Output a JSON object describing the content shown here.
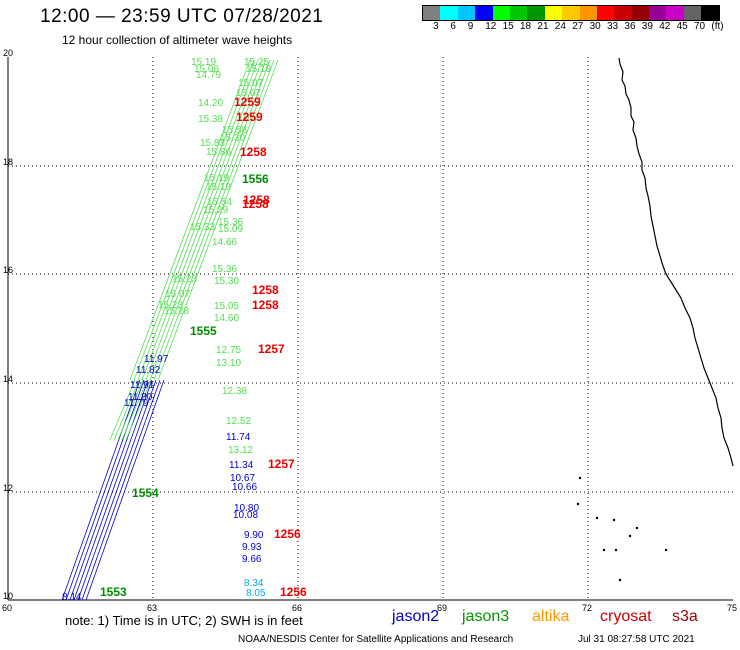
{
  "title": "12:00 — 23:59 UTC 07/28/2021",
  "subtitle": "12 hour collection of altimeter wave heights",
  "scale": {
    "colors": [
      "#7f7f7f",
      "#00ffff",
      "#00c8ff",
      "#0000ff",
      "#00ff00",
      "#00c800",
      "#009600",
      "#ffff00",
      "#ffc800",
      "#ff9600",
      "#ff0000",
      "#c80000",
      "#960000",
      "#960096",
      "#c800c8",
      "#646464",
      "#000000"
    ],
    "labels": [
      "3",
      "6",
      "9",
      "12",
      "15",
      "18",
      "21",
      "24",
      "27",
      "30",
      "33",
      "36",
      "39",
      "42",
      "45",
      "70",
      "(ft)"
    ]
  },
  "x_ticks": [
    "60",
    "63",
    "66",
    "69",
    "72",
    "75"
  ],
  "y_ticks": [
    "20",
    "18",
    "16",
    "14",
    "12",
    "10"
  ],
  "note": "note:  1) Time is in UTC;  2) SWH is in feet",
  "legend": [
    {
      "name": "jason2",
      "color": "#0000cc"
    },
    {
      "name": "jason3",
      "color": "#009600"
    },
    {
      "name": "altika",
      "color": "#ff9600"
    },
    {
      "name": "cryosat",
      "color": "#cc0000"
    },
    {
      "name": "s3a",
      "color": "#990000"
    }
  ],
  "credit": "NOAA/NESDIS Center for Satellite Applications and Research",
  "stamp": "Jul 31 08:27:58 UTC 2021",
  "colors": {
    "jason2": "#0000cc",
    "jason3_dark": "#008c00",
    "jason3_light": "#55dd55",
    "cryosat": "#ee0000",
    "altika_cyan": "#00aaee"
  },
  "track_labels": [
    {
      "t": "15.19",
      "c": "#55dd55"
    },
    {
      "t": "15.06",
      "c": "#55dd55"
    },
    {
      "t": "14.79",
      "c": "#55dd55"
    },
    {
      "t": "15.25",
      "c": "#55dd55"
    },
    {
      "t": "15.18",
      "c": "#55dd55"
    },
    {
      "t": "15.07",
      "c": "#55dd55"
    },
    {
      "t": "15.07",
      "c": "#55dd55"
    },
    {
      "t": "14.20",
      "c": "#55dd55"
    },
    {
      "t": "15.38",
      "c": "#55dd55"
    },
    {
      "t": "15.58",
      "c": "#55dd55"
    },
    {
      "t": "15.30",
      "c": "#55dd55"
    },
    {
      "t": "15.83",
      "c": "#55dd55"
    },
    {
      "t": "15.86",
      "c": "#55dd55"
    },
    {
      "t": "15.19",
      "c": "#55dd55"
    },
    {
      "t": "15.19",
      "c": "#55dd55"
    },
    {
      "t": "15.54",
      "c": "#55dd55"
    },
    {
      "t": "15.29",
      "c": "#55dd55"
    },
    {
      "t": "15.36",
      "c": "#55dd55"
    },
    {
      "t": "15.09",
      "c": "#55dd55"
    },
    {
      "t": "14.66",
      "c": "#55dd55"
    },
    {
      "t": "15.33",
      "c": "#55dd55"
    },
    {
      "t": "15.36",
      "c": "#55dd55"
    },
    {
      "t": "15.30",
      "c": "#55dd55"
    },
    {
      "t": "15.23",
      "c": "#55dd55"
    },
    {
      "t": "15.07",
      "c": "#55dd55"
    },
    {
      "t": "15.05",
      "c": "#55dd55"
    },
    {
      "t": "15.23",
      "c": "#55dd55"
    },
    {
      "t": "15.28",
      "c": "#55dd55"
    },
    {
      "t": "14.60",
      "c": "#55dd55"
    },
    {
      "t": "12.75",
      "c": "#55dd55"
    },
    {
      "t": "13.10",
      "c": "#55dd55"
    },
    {
      "t": "12.38",
      "c": "#55dd55"
    },
    {
      "t": "12.52",
      "c": "#55dd55"
    },
    {
      "t": "13.12",
      "c": "#55dd55"
    },
    {
      "t": "1259",
      "c": "#ee0000"
    },
    {
      "t": "1259",
      "c": "#ee0000"
    },
    {
      "t": "1258",
      "c": "#ee0000"
    },
    {
      "t": "1258",
      "c": "#ee0000"
    },
    {
      "t": "1258",
      "c": "#ee0000"
    },
    {
      "t": "1258",
      "c": "#ee0000"
    },
    {
      "t": "1258",
      "c": "#ee0000"
    },
    {
      "t": "1257",
      "c": "#ee0000"
    },
    {
      "t": "1257",
      "c": "#ee0000"
    },
    {
      "t": "1256",
      "c": "#ee0000"
    },
    {
      "t": "1256",
      "c": "#ee0000"
    },
    {
      "t": "1556",
      "c": "#008c00"
    },
    {
      "t": "1555",
      "c": "#008c00"
    },
    {
      "t": "1554",
      "c": "#008c00"
    },
    {
      "t": "1553",
      "c": "#008c00"
    },
    {
      "t": "11.97",
      "c": "#0000cc"
    },
    {
      "t": "11.82",
      "c": "#0000cc"
    },
    {
      "t": "11.91",
      "c": "#0000cc"
    },
    {
      "t": "11.80",
      "c": "#0000cc"
    },
    {
      "t": "11.79",
      "c": "#0000cc"
    },
    {
      "t": "11.74",
      "c": "#0000cc"
    },
    {
      "t": "11.34",
      "c": "#0000cc"
    },
    {
      "t": "10.67",
      "c": "#0000cc"
    },
    {
      "t": "10.66",
      "c": "#0000cc"
    },
    {
      "t": "10.80",
      "c": "#0000cc"
    },
    {
      "t": "10.08",
      "c": "#0000cc"
    },
    {
      "t": "9.90",
      "c": "#0000cc"
    },
    {
      "t": "9.93",
      "c": "#0000cc"
    },
    {
      "t": "9.66",
      "c": "#0000cc"
    },
    {
      "t": "8.34",
      "c": "#00aaee"
    },
    {
      "t": "8.05",
      "c": "#00aaee"
    },
    {
      "t": "8.14",
      "c": "#0000cc"
    }
  ]
}
